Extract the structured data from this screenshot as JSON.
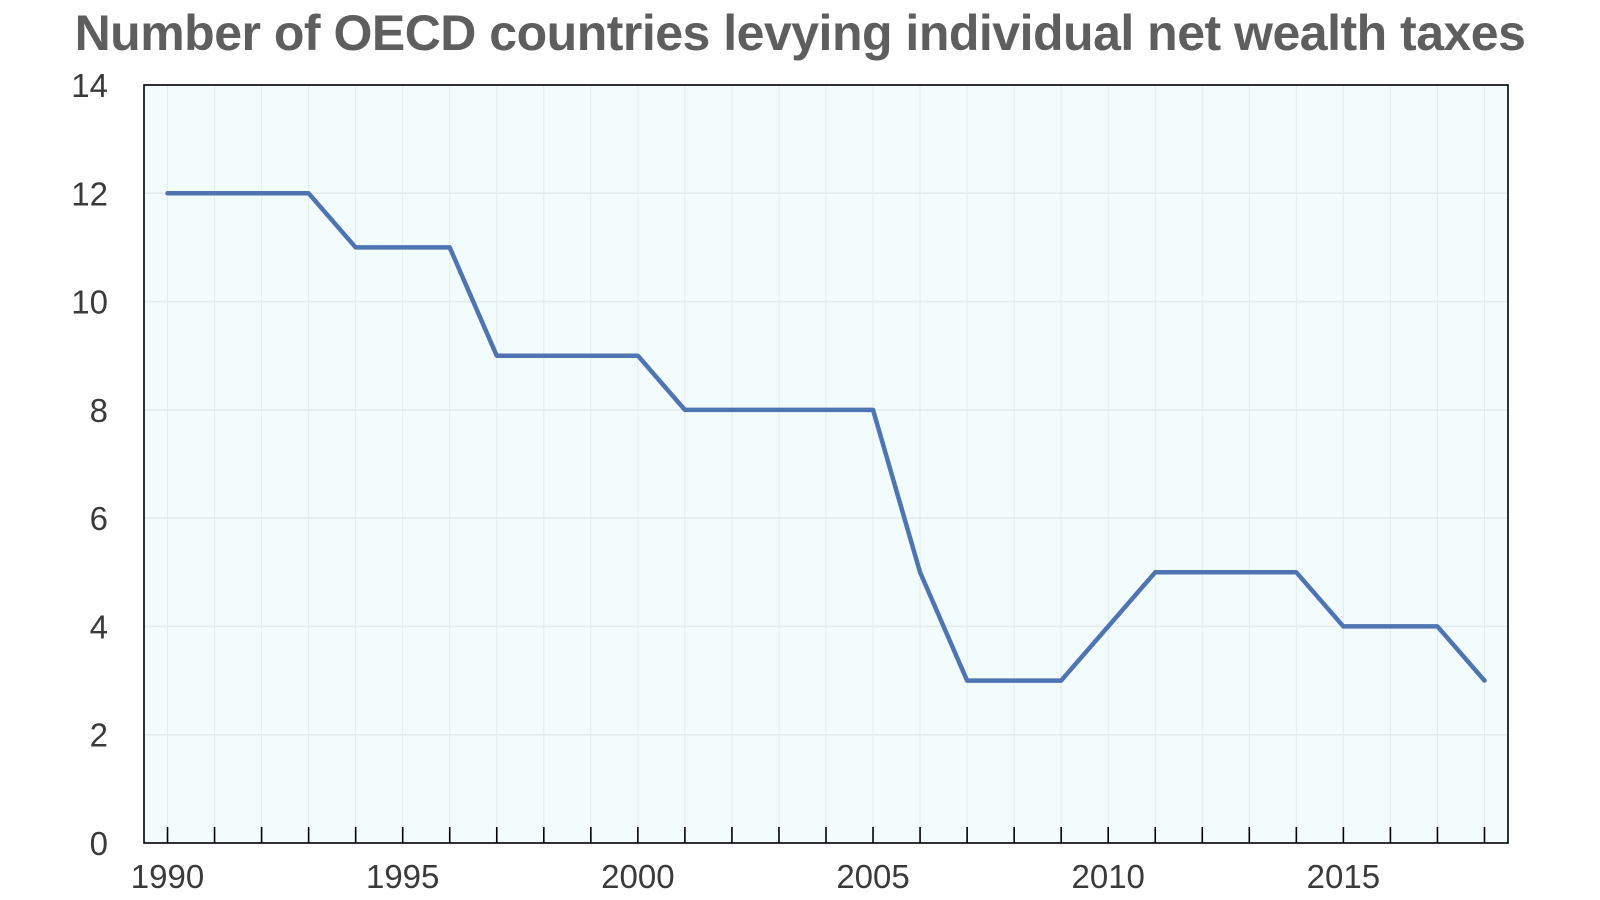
{
  "chart_data": {
    "type": "line",
    "title": "Number of OECD countries levying individual net wealth taxes",
    "xlabel": "",
    "ylabel": "",
    "xlim": [
      1989.5,
      2018.5
    ],
    "ylim": [
      0,
      14
    ],
    "x_ticks": [
      1990,
      1995,
      2000,
      2005,
      2010,
      2015
    ],
    "y_ticks": [
      0,
      2,
      4,
      6,
      8,
      10,
      12,
      14
    ],
    "grid": true,
    "legend": "none",
    "series": [
      {
        "x": [
          1990,
          1991,
          1992,
          1993,
          1994,
          1995,
          1996,
          1997,
          1998,
          1999,
          2000,
          2001,
          2002,
          2003,
          2004,
          2005,
          2006,
          2007,
          2008,
          2009,
          2010,
          2011,
          2012,
          2013,
          2014,
          2015,
          2016,
          2017,
          2018
        ],
        "values": [
          12,
          12,
          12,
          12,
          11,
          11,
          11,
          9,
          9,
          9,
          9,
          8,
          8,
          8,
          8,
          8,
          5,
          3,
          3,
          3,
          4,
          5,
          5,
          5,
          5,
          4,
          4,
          4,
          3
        ]
      }
    ],
    "colors": {
      "line": "#4f74b2",
      "plot_background": "#f3fcfd",
      "gridline": "#e2ecec",
      "axis": "#000000",
      "title": "#5e5e5e"
    }
  }
}
